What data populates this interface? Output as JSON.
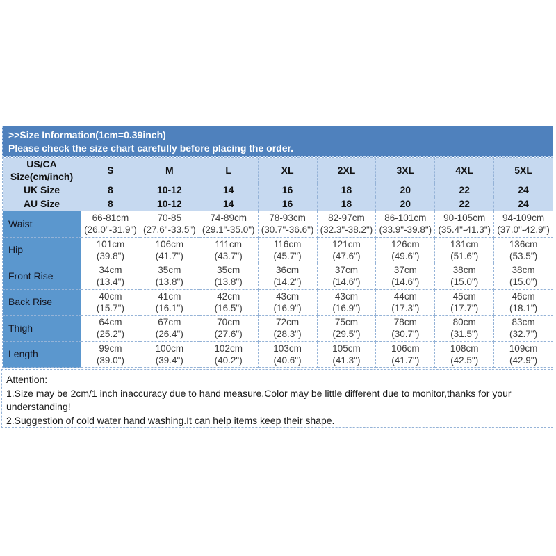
{
  "colors": {
    "band_bg": "#4f81bd",
    "band_text": "#ffffff",
    "header_row_bg": "#c6d9f0",
    "label_col_bg": "#5b97ce",
    "cell_border": "#95b3d7",
    "data_text": "#3d3d3d",
    "page_bg": "#ffffff"
  },
  "header": {
    "title": ">>Size Information(1cm=0.39inch)",
    "subtitle": "Please check the size chart carefully before placing the order."
  },
  "size_table": {
    "corner_label_line1": "US/CA",
    "corner_label_line2": "Size(cm/inch)",
    "sizes": [
      "S",
      "M",
      "L",
      "XL",
      "2XL",
      "3XL",
      "4XL",
      "5XL"
    ],
    "uk_row": {
      "label": "UK Size",
      "values": [
        "8",
        "10-12",
        "14",
        "16",
        "18",
        "20",
        "22",
        "24"
      ]
    },
    "au_row": {
      "label": "AU Size",
      "values": [
        "8",
        "10-12",
        "14",
        "16",
        "18",
        "20",
        "22",
        "24"
      ]
    },
    "measure_rows": [
      {
        "label": "Waist",
        "cm": [
          "66-81cm",
          "70-85",
          "74-89cm",
          "78-93cm",
          "82-97cm",
          "86-101cm",
          "90-105cm",
          "94-109cm"
        ],
        "inch": [
          "(26.0\"-31.9\")",
          "(27.6\"-33.5\")",
          "(29.1\"-35.0\")",
          "(30.7\"-36.6\")",
          "(32.3\"-38.2\")",
          "(33.9\"-39.8\")",
          "(35.4\"-41.3\")",
          "(37.0\"-42.9\")"
        ]
      },
      {
        "label": "Hip",
        "cm": [
          "101cm",
          "106cm",
          "111cm",
          "116cm",
          "121cm",
          "126cm",
          "131cm",
          "136cm"
        ],
        "inch": [
          "(39.8\")",
          "(41.7\")",
          "(43.7\")",
          "(45.7\")",
          "(47.6\")",
          "(49.6\")",
          "(51.6\")",
          "(53.5\")"
        ]
      },
      {
        "label": "Front Rise",
        "cm": [
          "34cm",
          "35cm",
          "35cm",
          "36cm",
          "37cm",
          "37cm",
          "38cm",
          "38cm"
        ],
        "inch": [
          "(13.4\")",
          "(13.8\")",
          "(13.8\")",
          "(14.2\")",
          "(14.6\")",
          "(14.6\")",
          "(15.0\")",
          "(15.0\")"
        ]
      },
      {
        "label": "Back Rise",
        "cm": [
          "40cm",
          "41cm",
          "42cm",
          "43cm",
          "43cm",
          "44cm",
          "45cm",
          "46cm"
        ],
        "inch": [
          "(15.7\")",
          "(16.1\")",
          "(16.5\")",
          "(16.9\")",
          "(16.9\")",
          "(17.3\")",
          "(17.7\")",
          "(18.1\")"
        ]
      },
      {
        "label": "Thigh",
        "cm": [
          "64cm",
          "67cm",
          "70cm",
          "72cm",
          "75cm",
          "78cm",
          "80cm",
          "83cm"
        ],
        "inch": [
          "(25.2\")",
          "(26.4\")",
          "(27.6\")",
          "(28.3\")",
          "(29.5\")",
          "(30.7\")",
          "(31.5\")",
          "(32.7\")"
        ]
      },
      {
        "label": "Length",
        "cm": [
          "99cm",
          "100cm",
          "102cm",
          "103cm",
          "105cm",
          "106cm",
          "108cm",
          "109cm"
        ],
        "inch": [
          "(39.0\")",
          "(39.4\")",
          "(40.2\")",
          "(40.6\")",
          "(41.3\")",
          "(41.7\")",
          "(42.5\")",
          "(42.9\")"
        ]
      }
    ]
  },
  "attention": {
    "title": "Attention:",
    "lines": [
      "1.Size may be 2cm/1 inch inaccuracy due to hand measure,Color may be little different due to monitor,thanks for your understanding!",
      "2.Suggestion of cold water hand washing.It can help items keep their shape."
    ]
  }
}
